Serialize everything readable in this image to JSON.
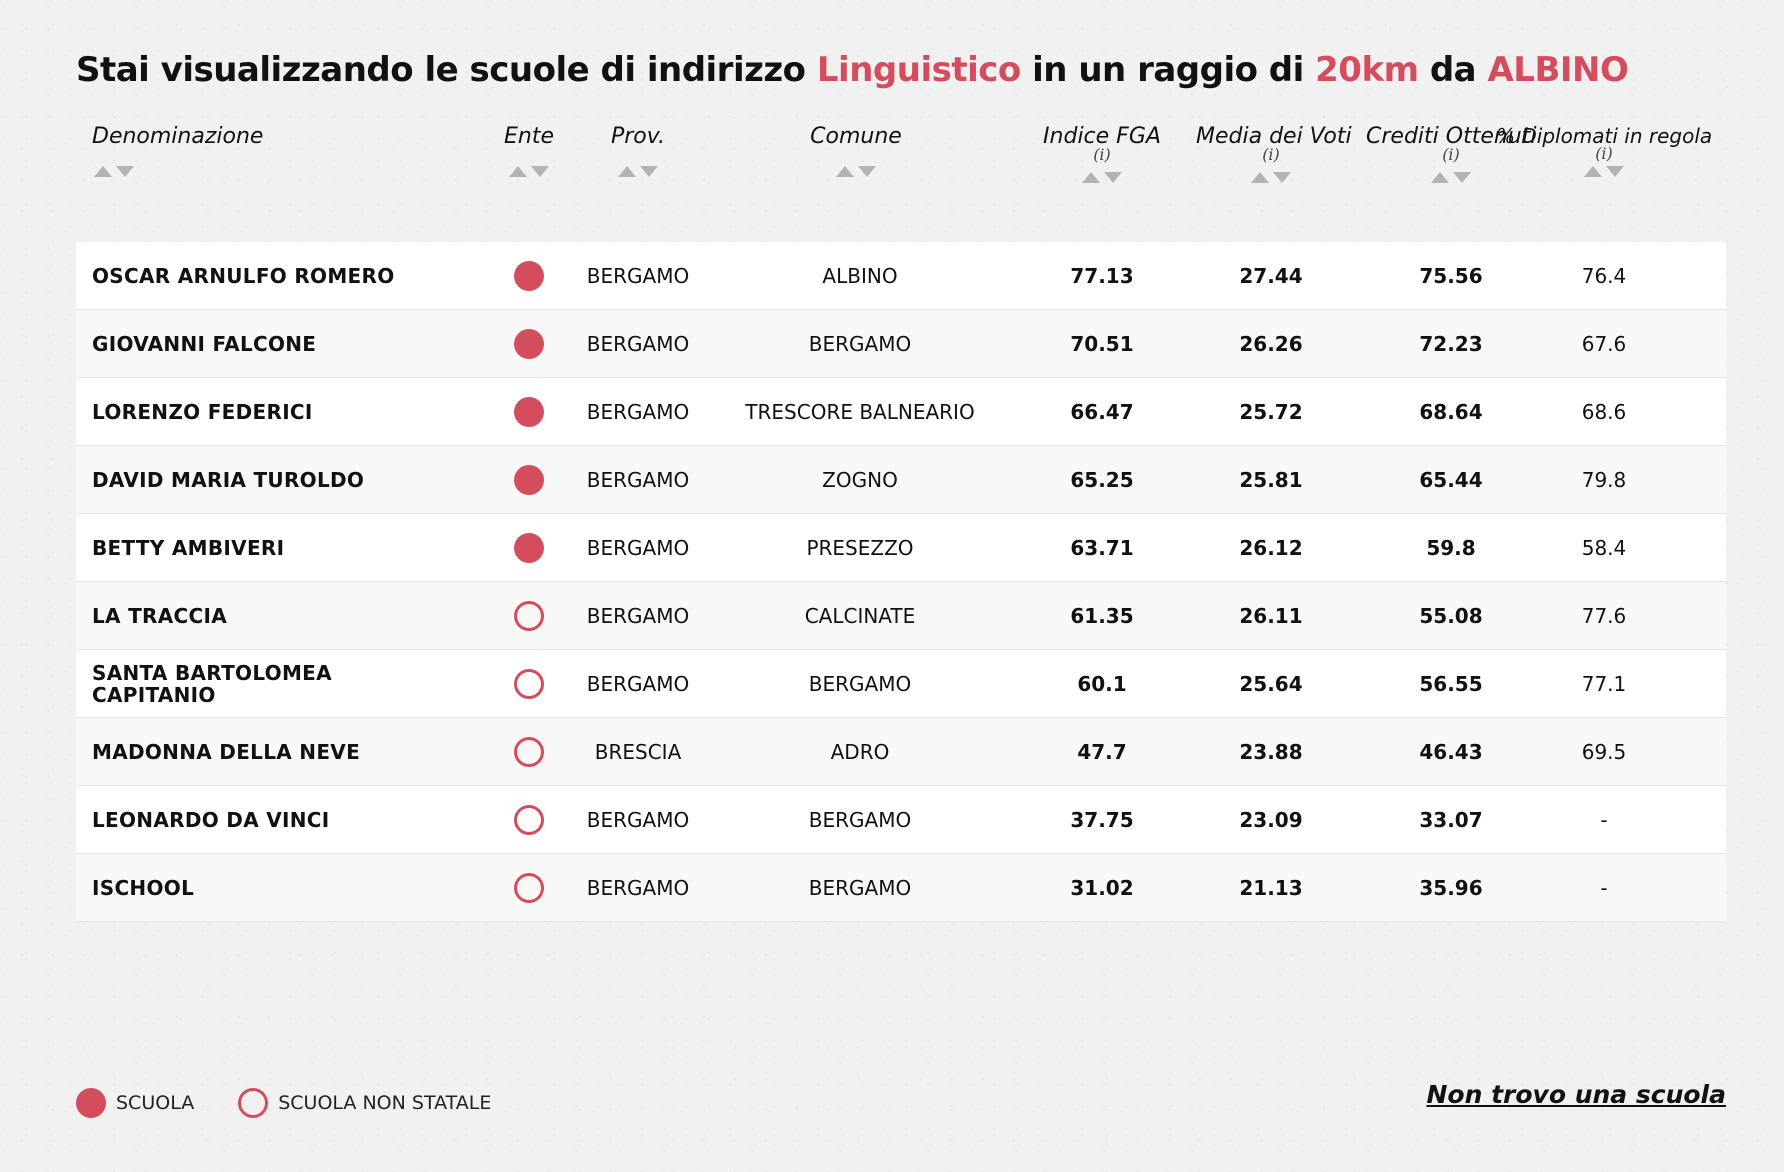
{
  "title": {
    "prefix": "Stai visualizzando le scuole di indirizzo",
    "indirizzo": "Linguistico",
    "middle": "in un raggio di",
    "radius": "20km",
    "connector": "da",
    "city": "ALBINO"
  },
  "colors": {
    "accent": "#d44d5c",
    "background": "#f1f1f1"
  },
  "columns": {
    "denominazione": "Denominazione",
    "ente": "Ente",
    "prov": "Prov.",
    "comune": "Comune",
    "fga": "Indice FGA",
    "media": "Media dei Voti",
    "crediti": "Crediti Ottenuti",
    "diplomati": "% Diplomati in regola",
    "info_mark": "(i)"
  },
  "rows": [
    {
      "name": "OSCAR ARNULFO ROMERO",
      "ente": "scuola",
      "prov": "BERGAMO",
      "comune": "ALBINO",
      "fga": "77.13",
      "media": "27.44",
      "crediti": "75.56",
      "diplomati": "76.4"
    },
    {
      "name": "GIOVANNI FALCONE",
      "ente": "scuola",
      "prov": "BERGAMO",
      "comune": "BERGAMO",
      "fga": "70.51",
      "media": "26.26",
      "crediti": "72.23",
      "diplomati": "67.6"
    },
    {
      "name": "LORENZO FEDERICI",
      "ente": "scuola",
      "prov": "BERGAMO",
      "comune": "TRESCORE BALNEARIO",
      "fga": "66.47",
      "media": "25.72",
      "crediti": "68.64",
      "diplomati": "68.6"
    },
    {
      "name": "DAVID MARIA TUROLDO",
      "ente": "scuola",
      "prov": "BERGAMO",
      "comune": "ZOGNO",
      "fga": "65.25",
      "media": "25.81",
      "crediti": "65.44",
      "diplomati": "79.8"
    },
    {
      "name": "BETTY AMBIVERI",
      "ente": "scuola",
      "prov": "BERGAMO",
      "comune": "PRESEZZO",
      "fga": "63.71",
      "media": "26.12",
      "crediti": "59.8",
      "diplomati": "58.4"
    },
    {
      "name": "LA TRACCIA",
      "ente": "non-statale",
      "prov": "BERGAMO",
      "comune": "CALCINATE",
      "fga": "61.35",
      "media": "26.11",
      "crediti": "55.08",
      "diplomati": "77.6"
    },
    {
      "name": "SANTA BARTOLOMEA CAPITANIO",
      "ente": "non-statale",
      "prov": "BERGAMO",
      "comune": "BERGAMO",
      "fga": "60.1",
      "media": "25.64",
      "crediti": "56.55",
      "diplomati": "77.1"
    },
    {
      "name": "MADONNA DELLA NEVE",
      "ente": "non-statale",
      "prov": "BRESCIA",
      "comune": "ADRO",
      "fga": "47.7",
      "media": "23.88",
      "crediti": "46.43",
      "diplomati": "69.5"
    },
    {
      "name": "LEONARDO DA VINCI",
      "ente": "non-statale",
      "prov": "BERGAMO",
      "comune": "BERGAMO",
      "fga": "37.75",
      "media": "23.09",
      "crediti": "33.07",
      "diplomati": "-"
    },
    {
      "name": "ISCHOOL",
      "ente": "non-statale",
      "prov": "BERGAMO",
      "comune": "BERGAMO",
      "fga": "31.02",
      "media": "21.13",
      "crediti": "35.96",
      "diplomati": "-"
    }
  ],
  "legend": {
    "scuola": "SCUOLA",
    "non_statale": "SCUOLA NON STATALE"
  },
  "links": {
    "not_found": "Non trovo una scuola"
  }
}
